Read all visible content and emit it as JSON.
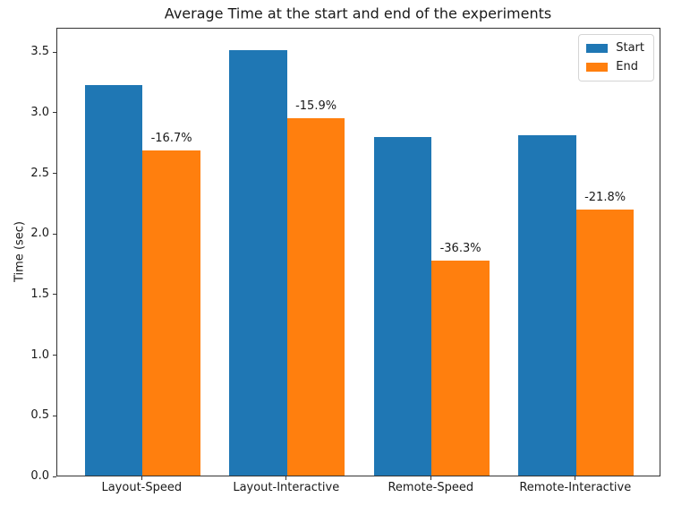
{
  "chart_data": {
    "type": "bar",
    "title": "Average Time at the start and end of the experiments",
    "xlabel": "",
    "ylabel": "Time (sec)",
    "categories": [
      "Layout-Speed",
      "Layout-Interactive",
      "Remote-Speed",
      "Remote-Interactive"
    ],
    "series": [
      {
        "name": "Start",
        "color": "#1f77b4",
        "values": [
          3.23,
          3.52,
          2.8,
          2.82
        ]
      },
      {
        "name": "End",
        "color": "#ff7f0e",
        "values": [
          2.69,
          2.96,
          1.78,
          2.2
        ]
      }
    ],
    "annotations": [
      "-16.7%",
      "-15.9%",
      "-36.3%",
      "-21.8%"
    ],
    "yticks": [
      "0.0",
      "0.5",
      "1.0",
      "1.5",
      "2.0",
      "2.5",
      "3.0",
      "3.5"
    ],
    "ylim": [
      0,
      3.7
    ],
    "legend_position": "upper right",
    "grid": false
  }
}
